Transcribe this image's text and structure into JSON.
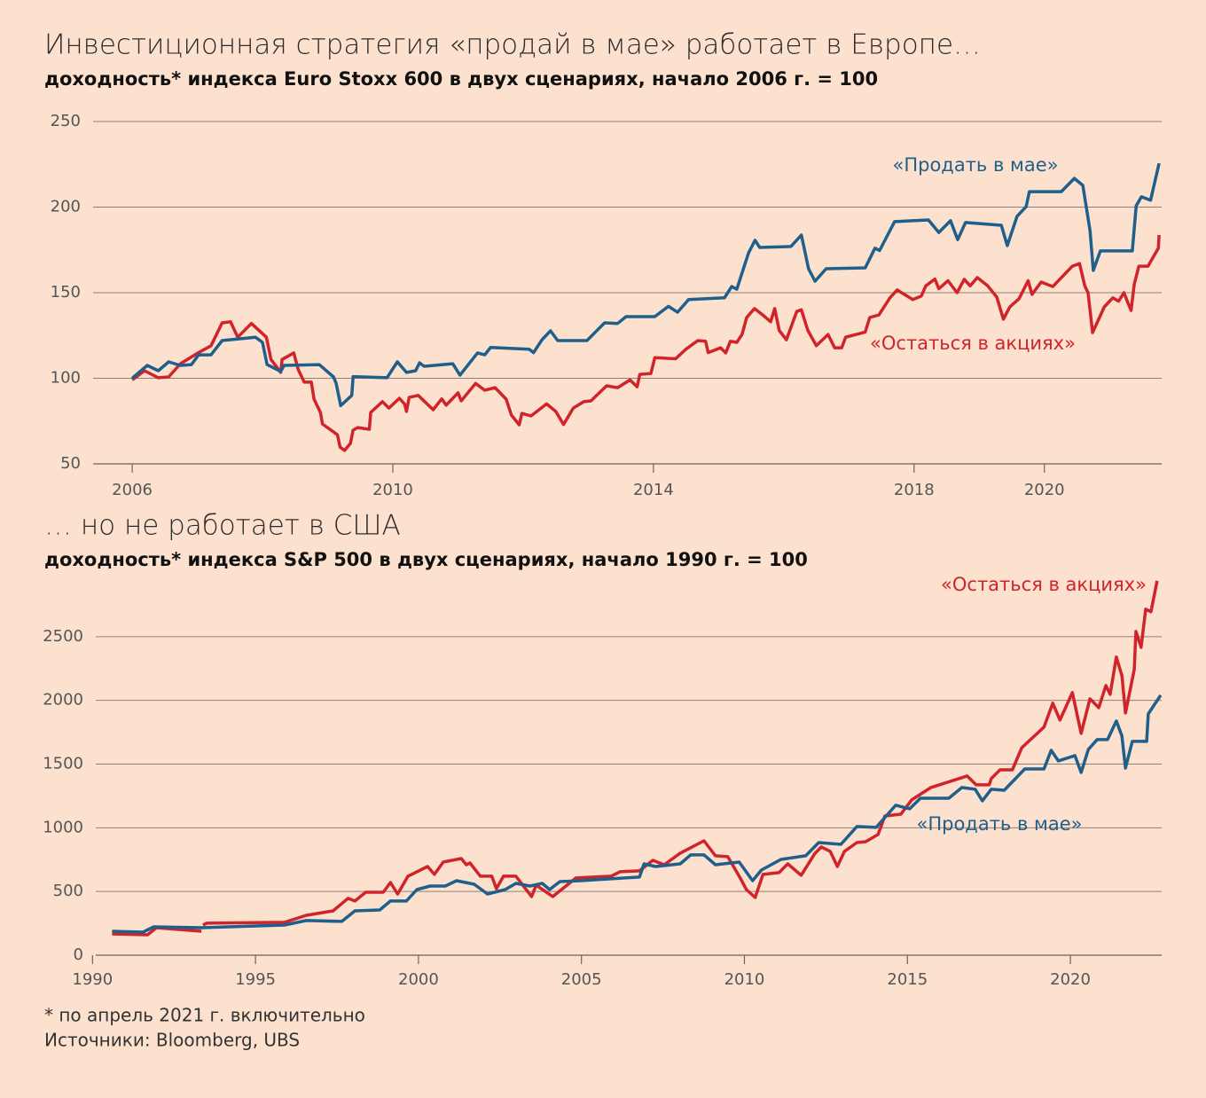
{
  "chart_data": [
    {
      "type": "line",
      "title": "Инвестиционная стратегия «продай в мае» работает в Европе…",
      "subtitle": "доходность* индекса Euro Stoxx 600 в двух сценариях, начало 2006 г. = 100",
      "xlim": [
        2005.4,
        2021.8
      ],
      "xticks": [
        2006,
        2010,
        2014,
        2018,
        2020
      ],
      "ylim": [
        50,
        250
      ],
      "yticks": [
        50,
        100,
        150,
        200,
        250
      ],
      "grid": true,
      "series": [
        {
          "name": "«Остаться в акциях»",
          "color": "#d0232a",
          "x": [
            2006.0,
            2006.19,
            2006.4,
            2006.56,
            2006.74,
            2007.01,
            2007.21,
            2007.38,
            2007.51,
            2007.62,
            2007.83,
            2008.06,
            2008.13,
            2008.28,
            2008.3,
            2008.48,
            2008.55,
            2008.64,
            2008.75,
            2008.79,
            2008.89,
            2008.92,
            2009.15,
            2009.19,
            2009.26,
            2009.35,
            2009.39,
            2009.46,
            2009.64,
            2009.66,
            2009.84,
            2009.94,
            2010.1,
            2010.18,
            2010.21,
            2010.25,
            2010.39,
            2010.62,
            2010.75,
            2010.82,
            2011.0,
            2011.05,
            2011.27,
            2011.41,
            2011.57,
            2011.74,
            2011.82,
            2011.94,
            2011.98,
            2012.12,
            2012.36,
            2012.5,
            2012.62,
            2012.77,
            2012.93,
            2013.04,
            2013.28,
            2013.45,
            2013.64,
            2013.75,
            2013.79,
            2013.96,
            2014.02,
            2014.34,
            2014.5,
            2014.68,
            2014.8,
            2014.84,
            2015.03,
            2015.11,
            2015.18,
            2015.28,
            2015.36,
            2015.43,
            2015.55,
            2015.69,
            2015.8,
            2015.86,
            2015.93,
            2016.04,
            2016.2,
            2016.27,
            2016.37,
            2016.5,
            2016.68,
            2016.78,
            2016.89,
            2016.95,
            2017.25,
            2017.32,
            2017.46,
            2017.63,
            2017.74,
            2017.98,
            2018.11,
            2018.18,
            2018.32,
            2018.38,
            2018.52,
            2018.66,
            2018.77,
            2018.86,
            2018.97,
            2019.13,
            2019.27,
            2019.37,
            2019.47,
            2019.61,
            2019.75,
            2019.81,
            2019.95,
            2020.13,
            2020.43,
            2020.54,
            2020.62,
            2020.67,
            2020.74,
            2020.92,
            2021.05,
            2021.14,
            2021.22,
            2021.33,
            2021.38,
            2021.45,
            2021.59,
            2021.75,
            2021.76
          ],
          "values": [
            99,
            104.4,
            100.3,
            100.8,
            108.5,
            114.8,
            119,
            132.4,
            133,
            124,
            132,
            124,
            111,
            103.4,
            111,
            114.8,
            105,
            97.7,
            97.7,
            87.8,
            80,
            73.3,
            67,
            59.8,
            57.8,
            62,
            69.7,
            71.2,
            70.2,
            80,
            86.3,
            82.6,
            88.3,
            85,
            80.6,
            88.8,
            90,
            81.6,
            88,
            84.3,
            91.5,
            86.8,
            97,
            93,
            94.5,
            87.8,
            78.5,
            72.8,
            79.5,
            78,
            85,
            80.6,
            73,
            82.6,
            86.3,
            86.8,
            95.6,
            94.5,
            99,
            95,
            102.3,
            102.8,
            112,
            111.4,
            117,
            122,
            121.6,
            115,
            117.8,
            114.8,
            121.6,
            121,
            125.6,
            135.5,
            140.7,
            136.6,
            133,
            140.7,
            128,
            122.5,
            139,
            140,
            128,
            119,
            125.6,
            117.8,
            117.8,
            124,
            127,
            135.5,
            137,
            147,
            151.6,
            146,
            148,
            154,
            158,
            152.3,
            157,
            150,
            157.8,
            154,
            158.8,
            154,
            147.4,
            134.5,
            141.7,
            146.4,
            157,
            149,
            156.2,
            153.6,
            165.5,
            167,
            154,
            150,
            126.7,
            141.7,
            147,
            145,
            150,
            139.6,
            155,
            165.5,
            165.5,
            176,
            183.7
          ]
        },
        {
          "name": "«Продать в мае»",
          "color": "#1f5f8b",
          "x": [
            2006.0,
            2006.23,
            2006.4,
            2006.56,
            2006.74,
            2006.91,
            2007.02,
            2007.21,
            2007.38,
            2007.89,
            2008.0,
            2008.07,
            2008.28,
            2008.33,
            2008.87,
            2009.09,
            2009.13,
            2009.2,
            2009.37,
            2009.39,
            2009.91,
            2010.07,
            2010.21,
            2010.35,
            2010.41,
            2010.48,
            2010.92,
            2011.03,
            2011.3,
            2011.41,
            2011.5,
            2012.09,
            2012.16,
            2012.29,
            2012.42,
            2012.53,
            2012.98,
            2013.25,
            2013.45,
            2013.58,
            2014.02,
            2014.23,
            2014.37,
            2014.54,
            2015.09,
            2015.2,
            2015.28,
            2015.46,
            2015.56,
            2015.63,
            2016.11,
            2016.27,
            2016.38,
            2016.48,
            2016.65,
            2017.25,
            2017.4,
            2017.47,
            2017.7,
            2018.22,
            2018.38,
            2018.56,
            2018.67,
            2018.79,
            2019.34,
            2019.43,
            2019.58,
            2019.72,
            2019.77,
            2020.26,
            2020.46,
            2020.59,
            2020.7,
            2020.75,
            2020.86,
            2021.35,
            2021.41,
            2021.49,
            2021.63,
            2021.76
          ],
          "values": [
            100,
            107.5,
            104.4,
            109.6,
            107.5,
            108,
            113.7,
            113.7,
            122,
            124,
            121,
            108,
            104,
            107.5,
            108,
            100.8,
            97,
            84,
            90,
            101,
            100.3,
            109.6,
            103.4,
            104.4,
            109,
            107,
            108.5,
            101.8,
            114.8,
            113.7,
            118,
            117,
            115,
            122.5,
            127.7,
            122,
            122,
            132.4,
            132,
            136,
            136,
            142,
            138.6,
            146,
            147,
            153.6,
            152,
            173.3,
            180.6,
            176.4,
            177,
            183.7,
            164,
            156.7,
            164,
            164.5,
            176,
            174.6,
            191.5,
            192.5,
            185.2,
            192,
            181,
            191,
            189.4,
            177.5,
            194.6,
            200.3,
            209,
            209,
            216.8,
            212.7,
            186.3,
            163,
            174.4,
            174.4,
            200.8,
            206,
            204,
            225.6
          ]
        }
      ]
    },
    {
      "type": "line",
      "title": "… но не работает в США",
      "subtitle": "доходность* индекса S&P 500 в двух сценариях, начало 1990 г. = 100",
      "xlim": [
        1990.1,
        2022.8
      ],
      "xticks": [
        1990,
        1995,
        2000,
        2005,
        2010,
        2015,
        2020
      ],
      "ylim": [
        0,
        3000
      ],
      "yticks": [
        0,
        500,
        1000,
        1500,
        2000,
        2500
      ],
      "grid": true,
      "series": [
        {
          "name": "«Остаться в акциях»",
          "color": "#d0232a",
          "x": [
            1990.6,
            1991.69,
            1991.96,
            1993.34,
            1993.36,
            1993.39,
            1993.5,
            1995.89,
            1996.56,
            1997.38,
            1997.84,
            1998.05,
            1998.38,
            1998.92,
            1999.14,
            1999.36,
            1999.68,
            2000.28,
            2000.49,
            2000.76,
            2001.31,
            2001.47,
            2001.58,
            2001.9,
            2002.25,
            2002.39,
            2002.61,
            2002.99,
            2003.47,
            2003.61,
            2004.12,
            2004.83,
            2005.91,
            2006.18,
            2006.78,
            2007.19,
            2007.54,
            2008.03,
            2008.76,
            2009.11,
            2009.49,
            2009.87,
            2010.06,
            2010.33,
            2010.57,
            2011.06,
            2011.33,
            2011.74,
            2012.15,
            2012.36,
            2012.63,
            2012.85,
            2013.07,
            2013.45,
            2013.72,
            2014.1,
            2014.31,
            2014.8,
            2015.13,
            2015.72,
            2016.83,
            2017.11,
            2017.51,
            2017.57,
            2017.84,
            2018.22,
            2018.51,
            2019.19,
            2019.46,
            2019.68,
            2020.06,
            2020.33,
            2020.6,
            2020.87,
            2021.09,
            2021.22,
            2021.41,
            2021.58,
            2021.69,
            2021.96,
            2022.01,
            2022.17,
            2022.31,
            2022.47,
            2022.66
          ],
          "values": [
            167,
            160,
            216,
            188,
            null,
            237,
            251,
            258,
            313,
            348,
            446,
            425,
            494,
            494,
            571,
            480,
            620,
            696,
            634,
            731,
            759,
            710,
            724,
            620,
            620,
            522,
            620,
            620,
            460,
            550,
            460,
            606,
            620,
            655,
            662,
            745,
            710,
            801,
            898,
            780,
            773,
            606,
            515,
            453,
            634,
            648,
            717,
            627,
            794,
            850,
            815,
            696,
            815,
            884,
            891,
            947,
            1093,
            1107,
            1219,
            1316,
            1407,
            1337,
            1337,
            1386,
            1455,
            1455,
            1629,
            1790,
            1978,
            1845,
            2061,
            1741,
            2012,
            1943,
            2117,
            2047,
            2340,
            2193,
            1901,
            2242,
            2541,
            2416,
            2716,
            2695,
            2938
          ]
        },
        {
          "name": "«Продать в мае»",
          "color": "#1f5f8b",
          "x": [
            1990.6,
            1991.55,
            1991.88,
            1993.34,
            1995.89,
            1996.56,
            1997.65,
            1998.05,
            1998.81,
            1999.14,
            1999.63,
            1999.95,
            2000.36,
            2000.82,
            2001.17,
            2001.71,
            2002.12,
            2002.66,
            2002.99,
            2003.42,
            2003.8,
            2004.02,
            2004.34,
            2004.96,
            2006.78,
            2006.92,
            2007.27,
            2008.03,
            2008.35,
            2008.76,
            2009.11,
            2009.84,
            2010.25,
            2010.52,
            2011.12,
            2011.88,
            2012.28,
            2012.96,
            2013.45,
            2014.04,
            2014.64,
            2015.07,
            2015.4,
            2016.27,
            2016.67,
            2017.08,
            2017.3,
            2017.57,
            2017.97,
            2018.6,
            2019.19,
            2019.41,
            2019.63,
            2020.14,
            2020.33,
            2020.55,
            2020.82,
            2021.14,
            2021.41,
            2021.58,
            2021.69,
            2021.9,
            2022.34,
            2022.39,
            2022.77
          ],
          "values": [
            188,
            181,
            223,
            216,
            237,
            272,
            265,
            348,
            355,
            425,
            425,
            515,
            543,
            543,
            585,
            557,
            480,
            515,
            564,
            543,
            564,
            515,
            578,
            585,
            613,
            717,
            696,
            717,
            787,
            787,
            710,
            731,
            585,
            668,
            752,
            780,
            884,
            870,
            1010,
            1003,
            1177,
            1149,
            1232,
            1232,
            1316,
            1302,
            1212,
            1302,
            1295,
            1462,
            1462,
            1608,
            1525,
            1567,
            1434,
            1615,
            1692,
            1692,
            1838,
            1720,
            1469,
            1678,
            1678,
            1894,
            2040
          ]
        }
      ]
    }
  ],
  "footnote": "* по апрель 2021 г. включительно",
  "source": "Источники: Bloomberg, UBS"
}
